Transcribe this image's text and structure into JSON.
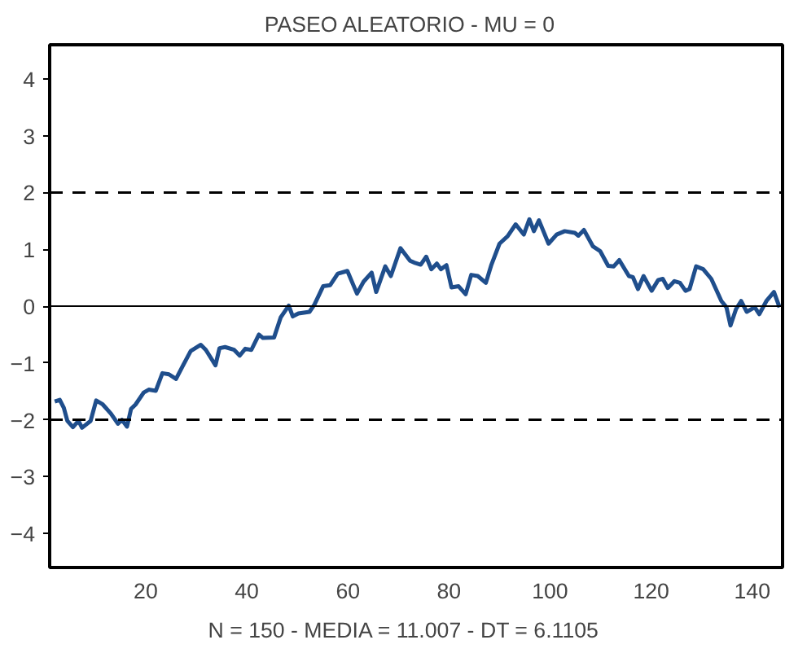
{
  "chart_data": {
    "type": "line",
    "title": "PASEO ALEATORIO  -  MU = 0",
    "annotations": [
      "N = 150  -  MEDIA = 11.007  -  DT = 6.1105"
    ],
    "x": [
      2,
      3,
      3.8,
      4.5,
      5.6,
      6.7,
      7.4,
      9.1,
      10.2,
      11.5,
      13.1,
      14.5,
      15.3,
      16.3,
      17.1,
      18,
      19.6,
      20.6,
      22,
      23.3,
      24.6,
      26,
      27.4,
      28.9,
      30.9,
      31.9,
      33.8,
      34.6,
      35.7,
      37.5,
      38.6,
      39.7,
      40.9,
      42.4,
      43.2,
      45.4,
      46.7,
      48.3,
      49.1,
      50.2,
      52.4,
      53.4,
      55.1,
      56.5,
      58,
      59.9,
      61.8,
      63.1,
      64.7,
      65.6,
      67.4,
      68.5,
      70.4,
      72.3,
      73.3,
      74.4,
      75.5,
      76.5,
      77.6,
      78.4,
      79.5,
      80.5,
      81.9,
      83.3,
      84.4,
      85.7,
      87.3,
      88.4,
      90,
      91.6,
      93.2,
      94.8,
      95.9,
      96.8,
      97.8,
      99.7,
      101.3,
      102.9,
      104.9,
      105.6,
      106.7,
      108.5,
      109.9,
      111.5,
      112.6,
      113.7,
      115.6,
      116.4,
      117.4,
      118.5,
      120.1,
      121.4,
      122.3,
      123.3,
      124.6,
      125.7,
      126.8,
      127.6,
      128.9,
      130.3,
      131.9,
      133.9,
      134.9,
      135.7,
      136.8,
      137.8,
      138.9,
      140.5,
      141.4,
      142.8,
      144.3,
      145.4
    ],
    "series": [
      {
        "color": "#1f4e8c",
        "values": [
          -1.68,
          -1.65,
          -1.79,
          -2.02,
          -2.13,
          -2.02,
          -2.14,
          -2.02,
          -1.66,
          -1.73,
          -1.89,
          -2.07,
          -2.0,
          -2.12,
          -1.81,
          -1.73,
          -1.52,
          -1.47,
          -1.49,
          -1.18,
          -1.2,
          -1.28,
          -1.04,
          -0.79,
          -0.68,
          -0.77,
          -1.04,
          -0.74,
          -0.72,
          -0.77,
          -0.87,
          -0.75,
          -0.77,
          -0.5,
          -0.56,
          -0.55,
          -0.2,
          0.01,
          -0.18,
          -0.13,
          -0.1,
          0.03,
          0.35,
          0.37,
          0.57,
          0.62,
          0.22,
          0.43,
          0.59,
          0.25,
          0.7,
          0.53,
          1.02,
          0.8,
          0.76,
          0.73,
          0.87,
          0.65,
          0.75,
          0.65,
          0.72,
          0.33,
          0.35,
          0.21,
          0.55,
          0.53,
          0.41,
          0.73,
          1.1,
          1.23,
          1.44,
          1.26,
          1.53,
          1.32,
          1.51,
          1.1,
          1.26,
          1.32,
          1.29,
          1.24,
          1.34,
          1.05,
          0.97,
          0.71,
          0.7,
          0.81,
          0.53,
          0.51,
          0.3,
          0.53,
          0.27,
          0.46,
          0.48,
          0.32,
          0.44,
          0.41,
          0.27,
          0.3,
          0.7,
          0.65,
          0.48,
          0.09,
          -0.02,
          -0.34,
          -0.05,
          0.09,
          -0.1,
          -0.02,
          -0.14,
          0.09,
          0.25,
          -0.02
        ]
      }
    ],
    "xlim": [
      1,
      146
    ],
    "ylim": [
      -4.6,
      4.6
    ],
    "xticks": [
      20,
      40,
      60,
      80,
      100,
      120,
      140
    ],
    "yticks": [
      -4,
      -3,
      -2,
      -1,
      0,
      1,
      2,
      3,
      4
    ],
    "ref_lines": [
      {
        "axis": "y",
        "value": 2,
        "line_style": "dashed",
        "color": "#000000"
      },
      {
        "axis": "y",
        "value": -2,
        "line_style": "dashed",
        "color": "#000000"
      },
      {
        "axis": "y",
        "value": 0,
        "line_style": "solid",
        "color": "#000000"
      }
    ],
    "grid": false,
    "line_style": "solid",
    "marker": "none"
  }
}
